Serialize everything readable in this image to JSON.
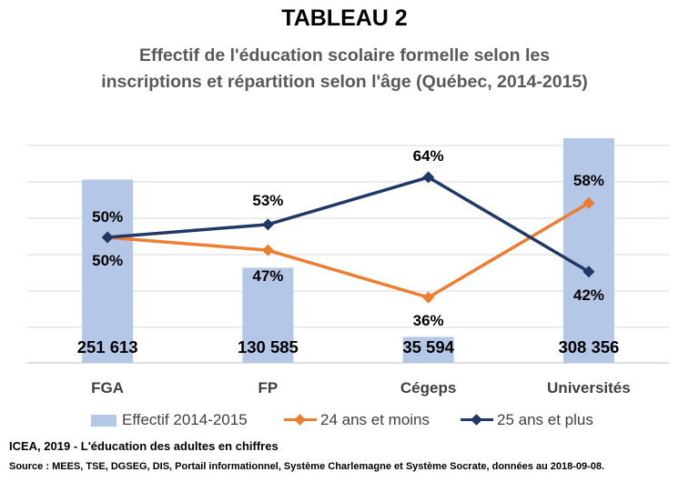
{
  "title": "TABLEAU 2",
  "subtitle_line1": "Effectif de l'éducation scolaire formelle selon les",
  "subtitle_line2": "inscriptions et répartition selon l'âge (Québec, 2014-2015)",
  "colors": {
    "bars": "#b4c7e7",
    "series_young": "#ed7d31",
    "series_old": "#203864",
    "grid": "#d9d9d9"
  },
  "chart_data": {
    "type": "bar",
    "categories": [
      "FGA",
      "FP",
      "Cégeps",
      "Universités"
    ],
    "bar_series": {
      "name": "Effectif 2014-2015",
      "values": [
        251613,
        130585,
        35594,
        308356
      ],
      "labels": [
        "251 613",
        "130 585",
        "35 594",
        "308 356"
      ]
    },
    "line_series": [
      {
        "name": "24 ans et moins",
        "values": [
          50,
          47,
          36,
          58
        ],
        "labels": [
          "",
          "47%",
          "36%",
          "58%"
        ]
      },
      {
        "name": "25 ans et plus",
        "values": [
          50,
          53,
          64,
          42
        ],
        "labels": [
          "50%",
          "53%",
          "64%",
          "42%"
        ]
      }
    ],
    "extra_labels": [
      "50%"
    ],
    "grid": true,
    "legend_position": "bottom"
  },
  "source_line1": "ICEA, 2019 - L'éducation des adultes en chiffres",
  "source_line2": "Source : MEES, TSE, DGSEG, DIS, Portail informationnel, Système Charlemagne et Système Socrate, données au 2018-09-08."
}
